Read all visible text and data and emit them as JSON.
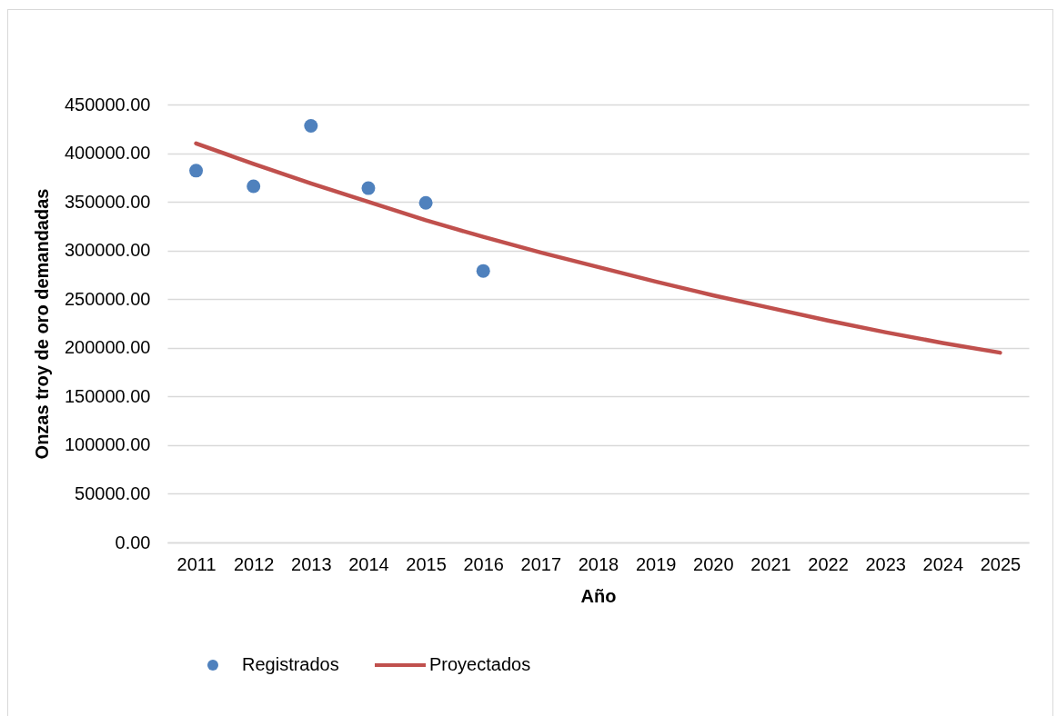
{
  "chart_data": {
    "type": "line",
    "xlabel": "Año",
    "ylabel": "Onzas troy de oro demandadas",
    "categories": [
      "2011",
      "2012",
      "2013",
      "2014",
      "2015",
      "2016",
      "2017",
      "2018",
      "2019",
      "2020",
      "2021",
      "2022",
      "2023",
      "2024",
      "2025"
    ],
    "series": [
      {
        "name": "Registrados",
        "type": "scatter",
        "marker": "circle",
        "color": "#4f81bd",
        "values": [
          382000,
          366000,
          428000,
          364000,
          349000,
          279000,
          null,
          null,
          null,
          null,
          null,
          null,
          null,
          null,
          null
        ]
      },
      {
        "name": "Proyectados",
        "line_style": "solid",
        "color": "#c0504d",
        "values": [
          410000,
          389000,
          369000,
          350000,
          331000,
          314000,
          298000,
          283000,
          268000,
          254000,
          241000,
          228000,
          216000,
          205000,
          195000
        ]
      }
    ],
    "ylim": [
      0,
      450000
    ],
    "yticks": [
      {
        "value": 0,
        "label": "0.00"
      },
      {
        "value": 50000,
        "label": "50000.00"
      },
      {
        "value": 100000,
        "label": "100000.00"
      },
      {
        "value": 150000,
        "label": "150000.00"
      },
      {
        "value": 200000,
        "label": "200000.00"
      },
      {
        "value": 250000,
        "label": "250000.00"
      },
      {
        "value": 300000,
        "label": "300000.00"
      },
      {
        "value": 350000,
        "label": "350000.00"
      },
      {
        "value": 400000,
        "label": "400000.00"
      },
      {
        "value": 450000,
        "label": "450000.00"
      }
    ],
    "grid": "y",
    "legend": "bottom"
  }
}
